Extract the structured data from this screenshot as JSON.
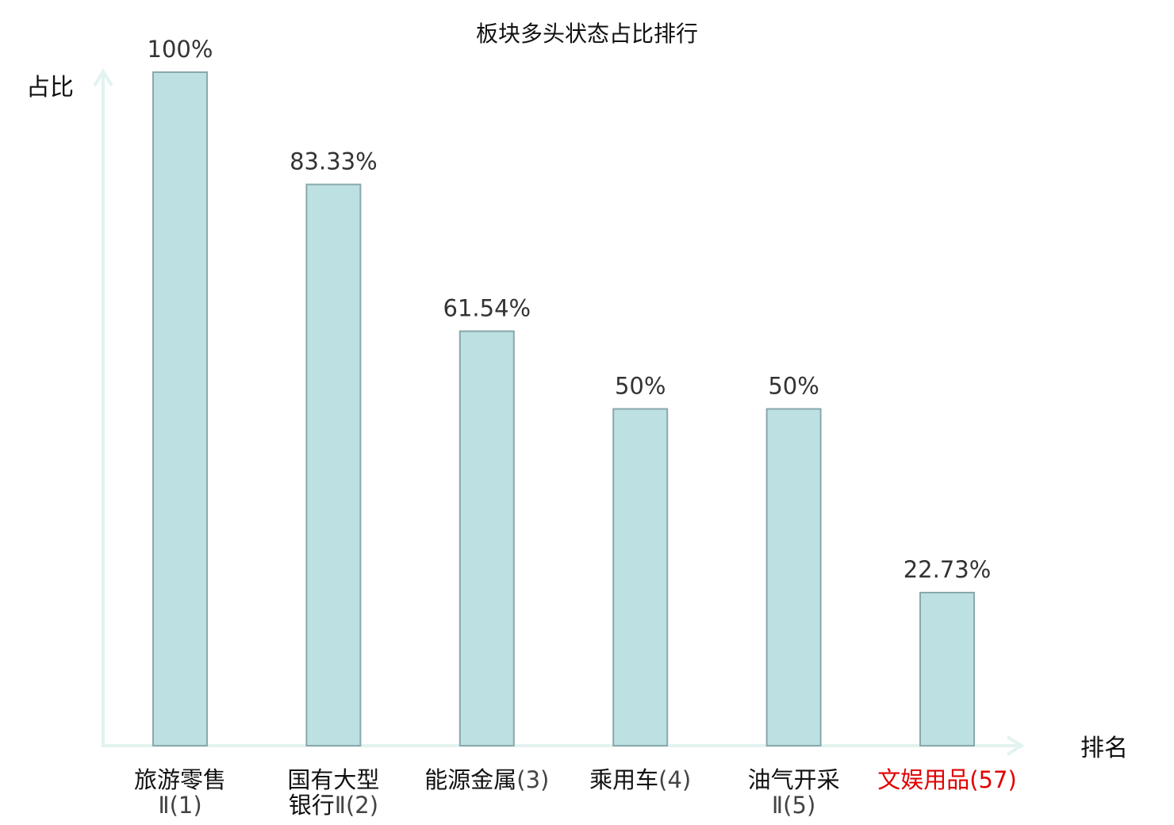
{
  "chart_data": {
    "type": "bar",
    "title": "板块多头状态占比排行",
    "ylabel": "占比",
    "xlabel": "排名",
    "ylim": [
      0,
      100
    ],
    "grid": false,
    "categories": [
      {
        "lines": [
          {
            "name": "旅游零售",
            "rank": ""
          },
          {
            "name": "",
            "rank": "Ⅱ(1)"
          }
        ],
        "highlight": false
      },
      {
        "lines": [
          {
            "name": "国有大型",
            "rank": ""
          },
          {
            "name": "银行",
            "rank": "Ⅱ(2)"
          }
        ],
        "highlight": false
      },
      {
        "lines": [
          {
            "name": "能源金属",
            "rank": "(3)"
          }
        ],
        "highlight": false
      },
      {
        "lines": [
          {
            "name": "乘用车",
            "rank": "(4)"
          }
        ],
        "highlight": false
      },
      {
        "lines": [
          {
            "name": "油气开采",
            "rank": ""
          },
          {
            "name": "",
            "rank": "Ⅱ(5)"
          }
        ],
        "highlight": false
      },
      {
        "lines": [
          {
            "name": "文娱用品",
            "rank": "(57)"
          }
        ],
        "highlight": true
      }
    ],
    "values": [
      100,
      83.33,
      61.54,
      50,
      50,
      22.73
    ],
    "value_labels": [
      "100%",
      "83.33%",
      "61.54%",
      "50%",
      "50%",
      "22.73%"
    ],
    "colors": {
      "bar_fill": "#bde0e3",
      "bar_stroke": "#8aa8ab",
      "axis": "#e2f3f0",
      "label_text": "#333333",
      "name_text": "#111111",
      "rank_text": "#444444",
      "highlight": "#e00000"
    }
  }
}
